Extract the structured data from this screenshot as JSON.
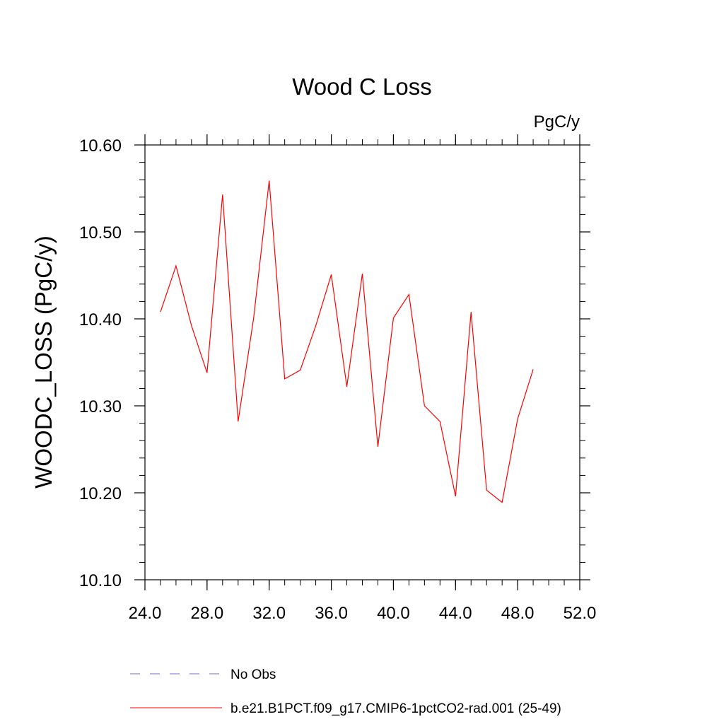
{
  "chart_data": {
    "type": "line",
    "title": "Wood C Loss",
    "units_label": "PgC/y",
    "ylabel": "WOODC_LOSS  (PgC/y)",
    "xlabel": "",
    "xlim": [
      24.0,
      52.0
    ],
    "ylim": [
      10.1,
      10.6
    ],
    "x_ticks": [
      "24.0",
      "28.0",
      "32.0",
      "36.0",
      "40.0",
      "44.0",
      "48.0",
      "52.0"
    ],
    "y_ticks": [
      "10.10",
      "10.20",
      "10.30",
      "10.40",
      "10.50",
      "10.60"
    ],
    "x_minor_step": 1,
    "y_minor_step": 0.02,
    "grid": false,
    "legend_position": "bottom",
    "series": [
      {
        "name": "b.e21.B1PCT.f09_g17.CMIP6-1pctCO2-rad.001 (25-49)",
        "color": "#ff0000",
        "style": "solid",
        "x": [
          25,
          26,
          27,
          28,
          29,
          30,
          31,
          32,
          33,
          34,
          35,
          36,
          37,
          38,
          39,
          40,
          41,
          42,
          43,
          44,
          45,
          46,
          47,
          48,
          49
        ],
        "y": [
          10.408,
          10.461,
          10.392,
          10.338,
          10.543,
          10.282,
          10.401,
          10.559,
          10.331,
          10.341,
          10.392,
          10.451,
          10.322,
          10.452,
          10.253,
          10.401,
          10.428,
          10.3,
          10.282,
          10.196,
          10.408,
          10.203,
          10.189,
          10.285,
          10.342
        ]
      }
    ],
    "legend": [
      {
        "label": "No Obs",
        "color": "#7b68c8",
        "style": "dashed"
      },
      {
        "label": "b.e21.B1PCT.f09_g17.CMIP6-1pctCO2-rad.001 (25-49)",
        "color": "#ff0000",
        "style": "solid"
      }
    ]
  }
}
